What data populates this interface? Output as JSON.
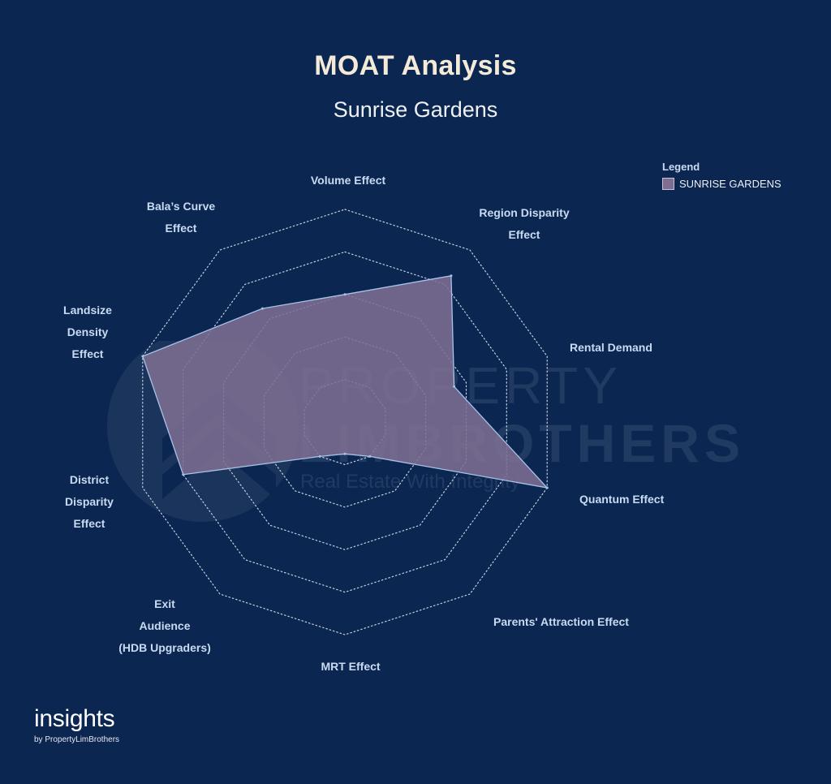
{
  "header": {
    "title": "MOAT Analysis",
    "subtitle": "Sunrise Gardens"
  },
  "legend": {
    "title": "Legend",
    "item": "SUNRISE GARDENS"
  },
  "brand": {
    "main": "insights",
    "sub": "by PropertyLimBrothers"
  },
  "watermark": {
    "line1": "PROPERTY",
    "line2": "LIMBROTHERS",
    "line3": "Real Estate With Integrity"
  },
  "colors": {
    "background": "#0b2650",
    "fill": "#7d6e92",
    "stroke": "#a9c2e6",
    "grid": "#c7cfdd",
    "label": "#c9dbf2"
  },
  "chart_data": {
    "type": "radar",
    "title": "MOAT Analysis",
    "subtitle": "Sunrise Gardens",
    "rmax": 5,
    "rings": 5,
    "grid": true,
    "legend_position": "top-right",
    "axes": [
      {
        "label": [
          "Volume Effect"
        ]
      },
      {
        "label": [
          "Region Disparity",
          "Effect"
        ]
      },
      {
        "label": [
          "Rental Demand"
        ]
      },
      {
        "label": [
          "Quantum Effect"
        ]
      },
      {
        "label": [
          "Parents' Attraction Effect"
        ]
      },
      {
        "label": [
          "MRT Effect"
        ]
      },
      {
        "label": [
          "Exit",
          "Audience",
          "(HDB Upgraders)"
        ]
      },
      {
        "label": [
          "District",
          "Disparity",
          "Effect"
        ]
      },
      {
        "label": [
          "Landsize",
          "Density",
          "Effect"
        ]
      },
      {
        "label": [
          "Bala’s Curve",
          "Effect"
        ]
      }
    ],
    "series": [
      {
        "name": "SUNRISE GARDENS",
        "values": [
          3.0,
          4.25,
          2.7,
          5.0,
          1.0,
          0.75,
          1.0,
          4.0,
          5.0,
          3.3
        ]
      }
    ]
  }
}
